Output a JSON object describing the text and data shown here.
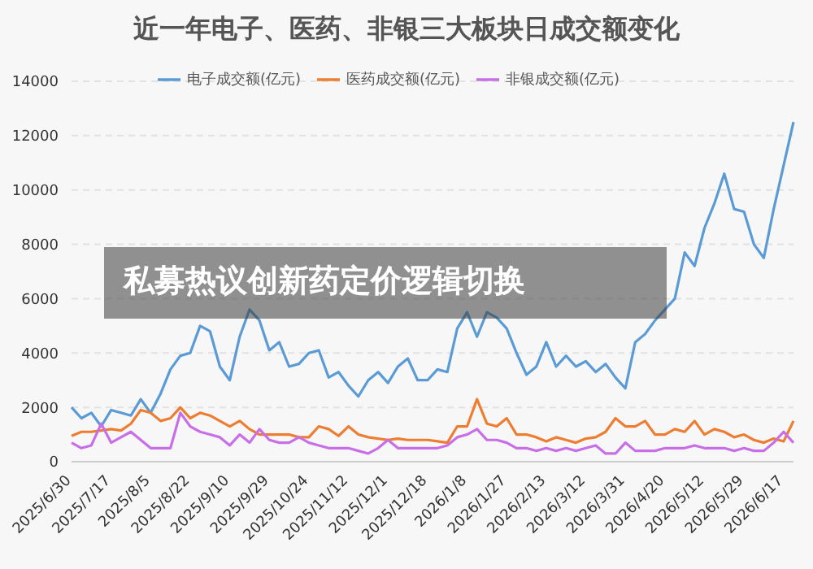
{
  "chart_data": {
    "type": "line",
    "title": "近一年电子、医药、非银三大板块日成交额变化",
    "categories": [
      "2025/6/30",
      null,
      null,
      null,
      "2025/7/17",
      null,
      null,
      null,
      "2025/8/5",
      null,
      null,
      null,
      "2025/8/22",
      null,
      null,
      null,
      "2025/9/10",
      null,
      null,
      null,
      "2025/9/29",
      null,
      null,
      null,
      "2025/10/24",
      null,
      null,
      null,
      "2025/11/12",
      null,
      null,
      null,
      "2025/12/1",
      null,
      null,
      null,
      "2025/12/18",
      null,
      null,
      null,
      "2026/1/8",
      null,
      null,
      null,
      "2026/1/27",
      null,
      null,
      null,
      "2026/2/13",
      null,
      null,
      null,
      "2026/3/12",
      null,
      null,
      null,
      "2026/3/31",
      null,
      null,
      null,
      "2026/4/20",
      null,
      null,
      null,
      "2026/5/12",
      null,
      null,
      null,
      "2026/5/29",
      null,
      null,
      null,
      "2026/6/17",
      null
    ],
    "series": [
      {
        "name": "电子成交额(亿元)",
        "color": "#5b9bd5",
        "values": [
          2000,
          1600,
          1800,
          1300,
          1900,
          1800,
          1700,
          2300,
          1800,
          2500,
          3400,
          3900,
          4000,
          5000,
          4800,
          3500,
          3000,
          4600,
          5600,
          5200,
          4100,
          4400,
          3500,
          3600,
          4000,
          4100,
          3100,
          3300,
          2800,
          2400,
          3000,
          3300,
          2900,
          3500,
          3800,
          3000,
          3000,
          3400,
          3300,
          4900,
          5500,
          4600,
          5500,
          5300,
          4900,
          4000,
          3200,
          3500,
          4400,
          3500,
          3900,
          3500,
          3700,
          3300,
          3600,
          3100,
          2700,
          4400,
          4700,
          5200,
          5600,
          6000,
          7700,
          7200,
          8600,
          9500,
          10600,
          9300,
          9200,
          8000,
          7500,
          9300,
          10900,
          12500
        ]
      },
      {
        "name": "医药成交额(亿元)",
        "color": "#ed7d31",
        "values": [
          950,
          1100,
          1100,
          1150,
          1200,
          1150,
          1400,
          1900,
          1800,
          1500,
          1600,
          2000,
          1600,
          1800,
          1700,
          1500,
          1300,
          1500,
          1200,
          1000,
          1000,
          1000,
          1000,
          900,
          900,
          1300,
          1200,
          950,
          1300,
          1000,
          900,
          850,
          800,
          850,
          800,
          800,
          800,
          750,
          700,
          1300,
          1300,
          2300,
          1400,
          1300,
          1600,
          1000,
          1000,
          900,
          750,
          900,
          800,
          700,
          850,
          900,
          1100,
          1600,
          1300,
          1300,
          1500,
          1000,
          1000,
          1200,
          1100,
          1500,
          1000,
          1200,
          1100,
          900,
          1000,
          800,
          700,
          850,
          750,
          1500
        ]
      },
      {
        "name": "非银成交额(亿元)",
        "color": "#c86fe8",
        "values": [
          700,
          500,
          600,
          1400,
          700,
          900,
          1100,
          800,
          500,
          500,
          500,
          1800,
          1300,
          1100,
          1000,
          900,
          600,
          1000,
          700,
          1200,
          800,
          700,
          700,
          900,
          700,
          600,
          500,
          500,
          500,
          400,
          300,
          500,
          800,
          500,
          500,
          500,
          500,
          500,
          600,
          900,
          1000,
          1200,
          800,
          800,
          700,
          500,
          500,
          400,
          500,
          400,
          500,
          400,
          500,
          600,
          300,
          300,
          700,
          400,
          400,
          400,
          500,
          500,
          500,
          600,
          500,
          500,
          500,
          400,
          500,
          400,
          400,
          700,
          1100,
          700
        ]
      }
    ],
    "ylim": [
      0,
      14000
    ],
    "yticks": [
      0,
      2000,
      4000,
      6000,
      8000,
      10000,
      12000,
      14000
    ],
    "grid": "y",
    "legend": "top",
    "marker": "none",
    "line_style": "solid",
    "annotations": [
      "私募热议创新药定价逻辑切换"
    ]
  }
}
